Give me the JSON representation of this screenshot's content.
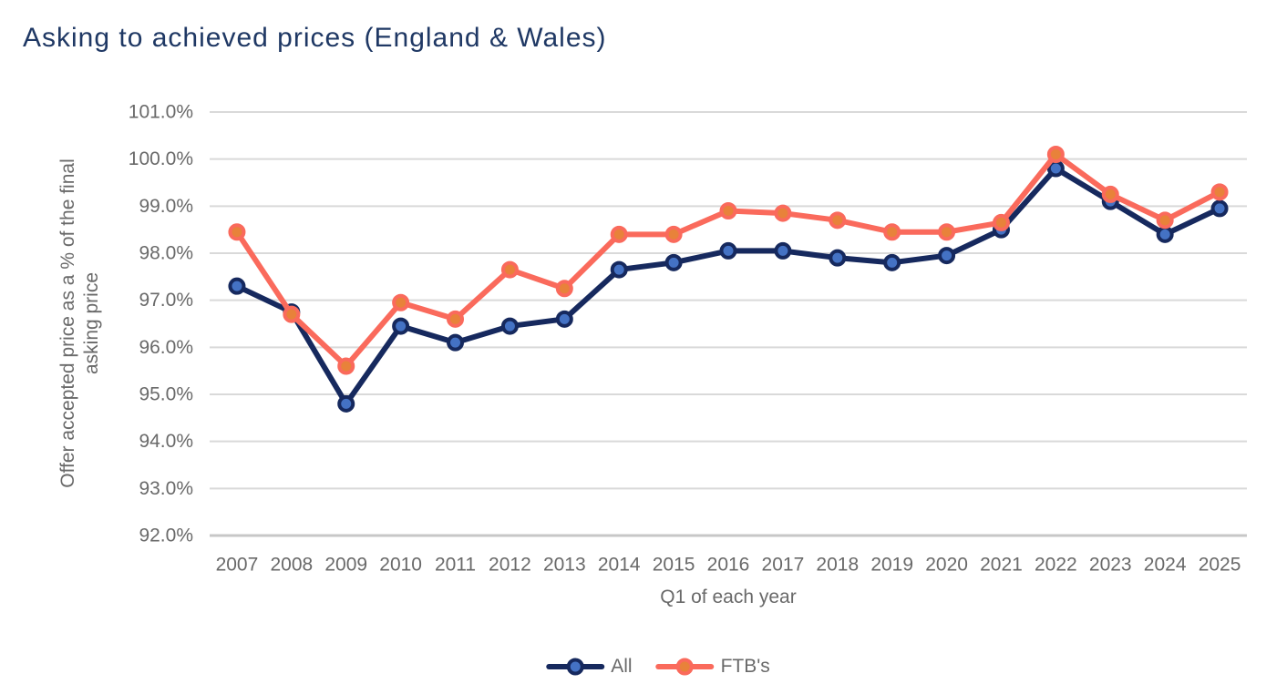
{
  "title": "Asking to achieved prices (England & Wales)",
  "chart_data": {
    "type": "line",
    "title": "Asking to achieved prices (England & Wales)",
    "xlabel": "Q1 of each year",
    "ylabel": "Offer accepted price as a % of the final asking price",
    "ylabel_lines": [
      "Offer accepted price as a % of the final",
      "asking price"
    ],
    "categories": [
      "2007",
      "2008",
      "2009",
      "2010",
      "2011",
      "2012",
      "2013",
      "2014",
      "2015",
      "2016",
      "2017",
      "2018",
      "2019",
      "2020",
      "2021",
      "2022",
      "2023",
      "2024",
      "2025"
    ],
    "series": [
      {
        "name": "All",
        "values": [
          97.3,
          96.75,
          94.8,
          96.45,
          96.1,
          96.45,
          96.6,
          97.65,
          97.8,
          98.05,
          98.05,
          97.9,
          97.8,
          97.95,
          98.5,
          99.8,
          99.1,
          98.4,
          98.95
        ],
        "line_color": "#16295E",
        "marker_fill": "#4472C4"
      },
      {
        "name": "FTB's",
        "values": [
          98.45,
          96.7,
          95.6,
          96.95,
          96.6,
          97.65,
          97.25,
          98.4,
          98.4,
          98.9,
          98.85,
          98.7,
          98.45,
          98.45,
          98.65,
          100.1,
          99.25,
          98.7,
          99.3
        ],
        "line_color": "#FA6A5C",
        "marker_fill": "#E8823A"
      }
    ],
    "ylim": [
      92.0,
      101.0
    ],
    "y_tick_step": 1.0,
    "y_ticks": [
      "101.0%",
      "100.0%",
      "99.0%",
      "98.0%",
      "97.0%",
      "96.0%",
      "95.0%",
      "94.0%",
      "93.0%",
      "92.0%"
    ],
    "grid": "horizontal",
    "legend_position": "bottom",
    "marker_style": "circle"
  },
  "colors": {
    "background": "#FFFFFF",
    "title_text": "#1F3864",
    "axis_text": "#696969",
    "gridline": "#D9D9D9",
    "axis_line": "#C7C7C7"
  }
}
